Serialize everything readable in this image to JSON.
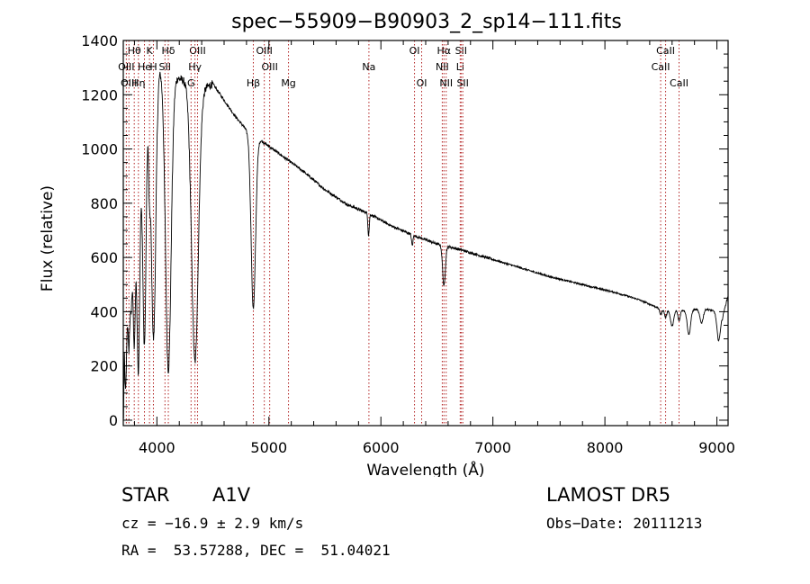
{
  "chart_data": {
    "type": "line",
    "title": "spec−55909−B90903_2_sp14−111.fits",
    "xlabel": "Wavelength (Å)",
    "ylabel": "Flux (relative)",
    "xlim": [
      3700,
      9100
    ],
    "ylim": [
      -20,
      1400
    ],
    "x_ticks": [
      4000,
      5000,
      6000,
      7000,
      8000,
      9000
    ],
    "y_ticks": [
      0,
      200,
      400,
      600,
      800,
      1000,
      1200,
      1400
    ],
    "grid": false,
    "line_color": "#000000",
    "marker_color": "#b22222",
    "continuum": [
      {
        "x": 3700,
        "y": 50
      },
      {
        "x": 3710,
        "y": 600
      },
      {
        "x": 3730,
        "y": 620
      },
      {
        "x": 3760,
        "y": 650
      },
      {
        "x": 3790,
        "y": 700
      },
      {
        "x": 3820,
        "y": 800
      },
      {
        "x": 3850,
        "y": 950
      },
      {
        "x": 3880,
        "y": 1100
      },
      {
        "x": 3910,
        "y": 1200
      },
      {
        "x": 3940,
        "y": 1270
      },
      {
        "x": 3970,
        "y": 1300
      },
      {
        "x": 4000,
        "y": 1310
      },
      {
        "x": 4030,
        "y": 1300
      },
      {
        "x": 4080,
        "y": 1290
      },
      {
        "x": 4150,
        "y": 1270
      },
      {
        "x": 4200,
        "y": 1260
      },
      {
        "x": 4250,
        "y": 1250
      },
      {
        "x": 4300,
        "y": 1230
      },
      {
        "x": 4400,
        "y": 1220
      },
      {
        "x": 4500,
        "y": 1240
      },
      {
        "x": 4600,
        "y": 1180
      },
      {
        "x": 4700,
        "y": 1120
      },
      {
        "x": 4800,
        "y": 1070
      },
      {
        "x": 4900,
        "y": 1040
      },
      {
        "x": 5000,
        "y": 1010
      },
      {
        "x": 5100,
        "y": 980
      },
      {
        "x": 5300,
        "y": 920
      },
      {
        "x": 5500,
        "y": 850
      },
      {
        "x": 5700,
        "y": 795
      },
      {
        "x": 5900,
        "y": 760
      },
      {
        "x": 6100,
        "y": 715
      },
      {
        "x": 6300,
        "y": 680
      },
      {
        "x": 6500,
        "y": 650
      },
      {
        "x": 6700,
        "y": 630
      },
      {
        "x": 6900,
        "y": 605
      },
      {
        "x": 7100,
        "y": 580
      },
      {
        "x": 7300,
        "y": 555
      },
      {
        "x": 7500,
        "y": 530
      },
      {
        "x": 7700,
        "y": 510
      },
      {
        "x": 7900,
        "y": 490
      },
      {
        "x": 8100,
        "y": 470
      },
      {
        "x": 8300,
        "y": 445
      },
      {
        "x": 8500,
        "y": 410
      },
      {
        "x": 8700,
        "y": 405
      },
      {
        "x": 8900,
        "y": 410
      },
      {
        "x": 9000,
        "y": 400
      },
      {
        "x": 9050,
        "y": 380
      },
      {
        "x": 9100,
        "y": 460
      }
    ],
    "absorption_features": [
      {
        "x": 3720,
        "depth": 500,
        "width": 12
      },
      {
        "x": 3750,
        "depth": 350,
        "width": 8
      },
      {
        "x": 3770,
        "depth": 250,
        "width": 8
      },
      {
        "x": 3798,
        "depth": 450,
        "width": 10
      },
      {
        "x": 3835,
        "depth": 700,
        "width": 12
      },
      {
        "x": 3889,
        "depth": 850,
        "width": 15
      },
      {
        "x": 3933,
        "depth": 280,
        "width": 8
      },
      {
        "x": 3970,
        "depth": 1000,
        "width": 20
      },
      {
        "x": 4102,
        "depth": 1100,
        "width": 25
      },
      {
        "x": 4340,
        "depth": 1010,
        "width": 30
      },
      {
        "x": 4861,
        "depth": 640,
        "width": 20
      },
      {
        "x": 5890,
        "depth": 80,
        "width": 6
      },
      {
        "x": 6280,
        "depth": 40,
        "width": 6
      },
      {
        "x": 6563,
        "depth": 150,
        "width": 12
      },
      {
        "x": 8498,
        "depth": 20,
        "width": 10
      },
      {
        "x": 8542,
        "depth": 30,
        "width": 10
      },
      {
        "x": 8600,
        "depth": 60,
        "width": 15
      },
      {
        "x": 8662,
        "depth": 40,
        "width": 10
      },
      {
        "x": 8750,
        "depth": 90,
        "width": 15
      },
      {
        "x": 8863,
        "depth": 50,
        "width": 15
      },
      {
        "x": 9015,
        "depth": 100,
        "width": 15
      }
    ],
    "line_markers": [
      {
        "label": "Hθ",
        "x": 3798,
        "row": 1
      },
      {
        "label": "K",
        "x": 3934,
        "row": 1
      },
      {
        "label": "Hδ",
        "x": 4102,
        "row": 1
      },
      {
        "label": "OIII",
        "x": 4363,
        "row": 1
      },
      {
        "label": "OIII",
        "x": 4959,
        "row": 1
      },
      {
        "label": "OI",
        "x": 6300,
        "row": 1
      },
      {
        "label": "Hα",
        "x": 6563,
        "row": 1
      },
      {
        "label": "SII",
        "x": 6716,
        "row": 1
      },
      {
        "label": "CaII",
        "x": 8542,
        "row": 1
      },
      {
        "label": "OIII",
        "x": 3727,
        "row": 2
      },
      {
        "label": "He",
        "x": 3889,
        "row": 2
      },
      {
        "label": "H",
        "x": 3969,
        "row": 2
      },
      {
        "label": "SII",
        "x": 4072,
        "row": 2
      },
      {
        "label": "Hγ",
        "x": 4340,
        "row": 2
      },
      {
        "label": "OIII",
        "x": 5007,
        "row": 2
      },
      {
        "label": "Na",
        "x": 5893,
        "row": 2
      },
      {
        "label": "NII",
        "x": 6548,
        "row": 2
      },
      {
        "label": "Li",
        "x": 6708,
        "row": 2
      },
      {
        "label": "CaII",
        "x": 8498,
        "row": 2
      },
      {
        "label": "OIII",
        "x": 3750,
        "row": 3
      },
      {
        "label": "Hη",
        "x": 3835,
        "row": 3
      },
      {
        "label": "G",
        "x": 4305,
        "row": 3
      },
      {
        "label": "Hβ",
        "x": 4861,
        "row": 3
      },
      {
        "label": "Mg",
        "x": 5175,
        "row": 3
      },
      {
        "label": "OI",
        "x": 6364,
        "row": 3
      },
      {
        "label": "NII",
        "x": 6583,
        "row": 3
      },
      {
        "label": "SII",
        "x": 6731,
        "row": 3
      },
      {
        "label": "CaII",
        "x": 8662,
        "row": 3
      }
    ]
  },
  "info": {
    "object_type": "STAR",
    "subclass": "A1V",
    "survey": "LAMOST DR5",
    "redshift": "cz = −16.9 ± 2.9 km/s",
    "obs_date": "Obs−Date: 20111213",
    "coords": "RA =  53.57288, DEC =  51.04021"
  }
}
